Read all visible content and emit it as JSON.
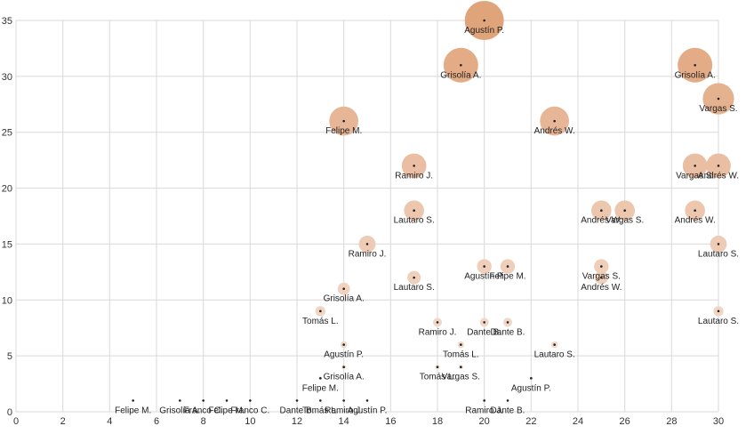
{
  "chart_data": {
    "type": "scatter",
    "bubble": true,
    "title": "",
    "xlabel": "",
    "ylabel": "",
    "xlim": [
      0,
      30
    ],
    "ylim": [
      0,
      35
    ],
    "x_ticks": [
      0,
      2,
      4,
      6,
      8,
      10,
      12,
      14,
      16,
      18,
      20,
      22,
      24,
      26,
      28,
      30
    ],
    "y_ticks": [
      0,
      5,
      10,
      15,
      20,
      25,
      30,
      35
    ],
    "grid": true,
    "color_low": "#f5e1d6",
    "color_high": "#e0a47b",
    "points": [
      {
        "x": 20,
        "y": 35,
        "label": "Agustín P."
      },
      {
        "x": 19,
        "y": 31,
        "label": "Grisolía A."
      },
      {
        "x": 29,
        "y": 31,
        "label": "Grisolía A."
      },
      {
        "x": 30,
        "y": 28,
        "label": "Vargas S."
      },
      {
        "x": 14,
        "y": 26,
        "label": "Felipe M."
      },
      {
        "x": 23,
        "y": 26,
        "label": "Andrés W."
      },
      {
        "x": 17,
        "y": 22,
        "label": "Ramiro J."
      },
      {
        "x": 29,
        "y": 22,
        "label": "Vargas S."
      },
      {
        "x": 30,
        "y": 22,
        "label": "Andrés W."
      },
      {
        "x": 17,
        "y": 18,
        "label": "Lautaro S."
      },
      {
        "x": 25,
        "y": 18,
        "label": "Andrés W."
      },
      {
        "x": 26,
        "y": 18,
        "label": "Vargas S."
      },
      {
        "x": 29,
        "y": 18,
        "label": "Andrés W."
      },
      {
        "x": 15,
        "y": 15,
        "label": "Ramiro J."
      },
      {
        "x": 30,
        "y": 15,
        "label": "Lautaro S."
      },
      {
        "x": 20,
        "y": 13,
        "label": "Agustín P."
      },
      {
        "x": 21,
        "y": 13,
        "label": "Felipe M."
      },
      {
        "x": 25,
        "y": 13,
        "label": "Vargas S."
      },
      {
        "x": 25,
        "y": 12,
        "label": "Andrés W."
      },
      {
        "x": 17,
        "y": 12,
        "label": "Lautaro S."
      },
      {
        "x": 14,
        "y": 11,
        "label": "Grisolía A."
      },
      {
        "x": 13,
        "y": 9,
        "label": "Tomás L."
      },
      {
        "x": 30,
        "y": 9,
        "label": "Lautaro S."
      },
      {
        "x": 18,
        "y": 8,
        "label": "Ramiro J."
      },
      {
        "x": 20,
        "y": 8,
        "label": "Dante B."
      },
      {
        "x": 21,
        "y": 8,
        "label": "Dante B."
      },
      {
        "x": 14,
        "y": 6,
        "label": "Agustín P."
      },
      {
        "x": 19,
        "y": 6,
        "label": "Tomás L."
      },
      {
        "x": 23,
        "y": 6,
        "label": "Lautaro S."
      },
      {
        "x": 14,
        "y": 4,
        "label": "Grisolía A."
      },
      {
        "x": 18,
        "y": 4,
        "label": "Tomás L."
      },
      {
        "x": 19,
        "y": 4,
        "label": "Vargas S."
      },
      {
        "x": 13,
        "y": 3,
        "label": "Felipe M."
      },
      {
        "x": 22,
        "y": 3,
        "label": "Agustín P."
      },
      {
        "x": 5,
        "y": 1,
        "label": "Felipe M."
      },
      {
        "x": 7,
        "y": 1,
        "label": "Grisolía A."
      },
      {
        "x": 8,
        "y": 1,
        "label": "Franco C."
      },
      {
        "x": 9,
        "y": 1,
        "label": "Felipe M."
      },
      {
        "x": 10,
        "y": 1,
        "label": "Franco C."
      },
      {
        "x": 12,
        "y": 1,
        "label": "Dante B."
      },
      {
        "x": 13,
        "y": 1,
        "label": "Tomás L."
      },
      {
        "x": 14,
        "y": 1,
        "label": "Ramiro J."
      },
      {
        "x": 15,
        "y": 1,
        "label": "Agustín P."
      },
      {
        "x": 20,
        "y": 1,
        "label": "Ramiro J."
      },
      {
        "x": 21,
        "y": 1,
        "label": "Dante B."
      }
    ]
  }
}
